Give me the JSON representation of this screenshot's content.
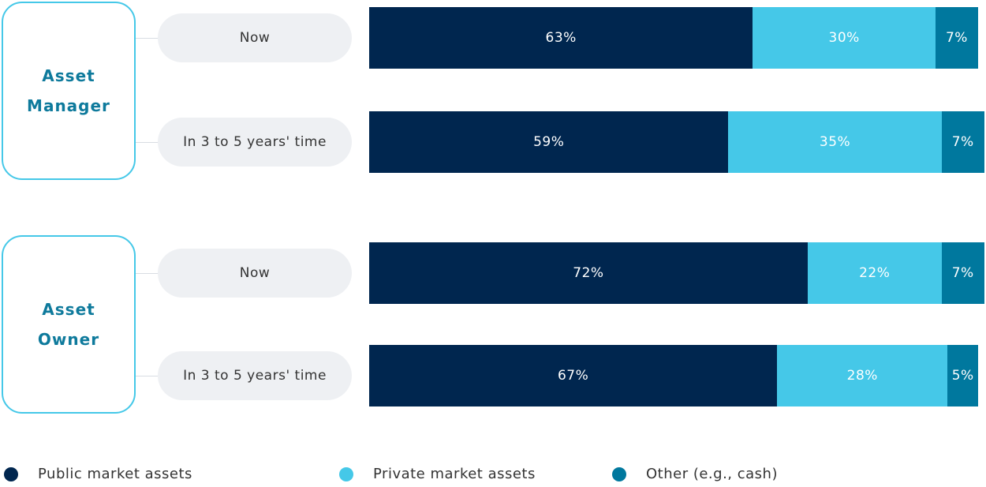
{
  "chart_data": {
    "type": "bar",
    "orientation": "horizontal",
    "stacked": true,
    "xlim": [
      0,
      100
    ],
    "groups": [
      "Asset Manager",
      "Asset Owner"
    ],
    "categories": [
      "Now",
      "In 3 to 5 years' time",
      "Now",
      "In 3 to 5 years' time"
    ],
    "series": [
      {
        "name": "Public market assets",
        "color": "#00264f",
        "values": [
          63,
          59,
          72,
          67
        ],
        "value_labels": [
          "63%",
          "59%",
          "72%",
          "67%"
        ]
      },
      {
        "name": "Private market assets",
        "color": "#45c8e8",
        "values": [
          30,
          35,
          22,
          28
        ],
        "value_labels": [
          "30%",
          "35%",
          "22%",
          "28%"
        ]
      },
      {
        "name": "Other (e.g., cash)",
        "color": "#00789e",
        "values": [
          7,
          7,
          7,
          5
        ],
        "value_labels": [
          "7%",
          "7%",
          "7%",
          "5%"
        ]
      }
    ]
  }
}
